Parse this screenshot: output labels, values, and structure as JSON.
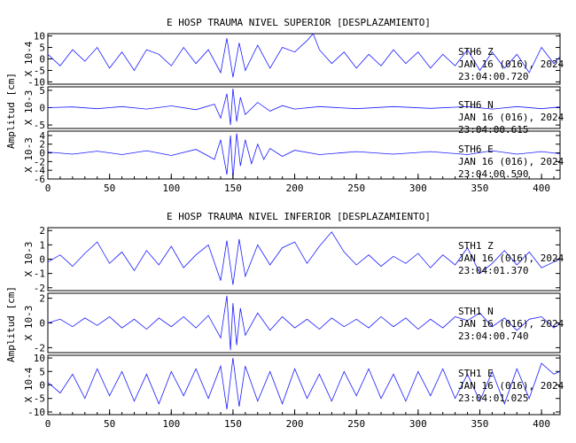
{
  "chart_data": [
    {
      "type": "line",
      "title": "E HOSP TRAUMA NIVEL SUPERIOR [DESPLAZAMIENTO]",
      "ylabel": "Amplitud [cm]",
      "xlim": [
        0,
        415
      ],
      "x_ticks": [
        0,
        50,
        100,
        150,
        200,
        250,
        300,
        350,
        400
      ],
      "series": [
        {
          "name": "STH6 Z",
          "scale_label": "X 10-4",
          "y_ticks": [
            "10",
            "5",
            "0",
            "-5",
            "-10"
          ],
          "ylim": [
            -11,
            11
          ],
          "annotation": [
            "STH6 Z",
            "JAN 16 (016), 2024",
            "23:04:00.720"
          ],
          "color": "#1a1aff",
          "points": [
            [
              0,
              2
            ],
            [
              10,
              -3
            ],
            [
              20,
              4
            ],
            [
              30,
              -1
            ],
            [
              40,
              5
            ],
            [
              50,
              -4
            ],
            [
              60,
              3
            ],
            [
              70,
              -5
            ],
            [
              80,
              4
            ],
            [
              90,
              2
            ],
            [
              100,
              -3
            ],
            [
              110,
              5
            ],
            [
              120,
              -2
            ],
            [
              130,
              4
            ],
            [
              140,
              -6
            ],
            [
              145,
              9
            ],
            [
              150,
              -8
            ],
            [
              155,
              7
            ],
            [
              160,
              -5
            ],
            [
              170,
              6
            ],
            [
              180,
              -4
            ],
            [
              190,
              5
            ],
            [
              200,
              3
            ],
            [
              210,
              8
            ],
            [
              215,
              11
            ],
            [
              220,
              4
            ],
            [
              230,
              -2
            ],
            [
              240,
              3
            ],
            [
              250,
              -4
            ],
            [
              260,
              2
            ],
            [
              270,
              -3
            ],
            [
              280,
              4
            ],
            [
              290,
              -2
            ],
            [
              300,
              3
            ],
            [
              310,
              -4
            ],
            [
              320,
              2
            ],
            [
              330,
              -3
            ],
            [
              340,
              4
            ],
            [
              350,
              -5
            ],
            [
              360,
              3
            ],
            [
              370,
              -4
            ],
            [
              380,
              2
            ],
            [
              390,
              -6
            ],
            [
              400,
              5
            ],
            [
              410,
              -2
            ],
            [
              415,
              1
            ]
          ]
        },
        {
          "name": "STH6 N",
          "scale_label": "X 10-3",
          "y_ticks": [
            "5",
            "0",
            "-5"
          ],
          "ylim": [
            -6,
            6
          ],
          "annotation": [
            "STH6 N",
            "JAN 16 (016), 2024",
            "23:04:00.615"
          ],
          "color": "#1a1aff",
          "points": [
            [
              0,
              0
            ],
            [
              20,
              0.2
            ],
            [
              40,
              -0.3
            ],
            [
              60,
              0.3
            ],
            [
              80,
              -0.4
            ],
            [
              100,
              0.5
            ],
            [
              120,
              -0.6
            ],
            [
              135,
              1
            ],
            [
              140,
              -3
            ],
            [
              145,
              4
            ],
            [
              148,
              -5
            ],
            [
              150,
              5.5
            ],
            [
              153,
              -4
            ],
            [
              156,
              3
            ],
            [
              160,
              -2
            ],
            [
              170,
              1.5
            ],
            [
              180,
              -1
            ],
            [
              190,
              0.6
            ],
            [
              200,
              -0.4
            ],
            [
              220,
              0.3
            ],
            [
              250,
              -0.3
            ],
            [
              280,
              0.3
            ],
            [
              310,
              -0.2
            ],
            [
              340,
              0.3
            ],
            [
              360,
              -0.4
            ],
            [
              380,
              0.3
            ],
            [
              400,
              -0.3
            ],
            [
              415,
              0.2
            ]
          ]
        },
        {
          "name": "STH6 E",
          "scale_label": "X 10-3",
          "y_ticks": [
            "4",
            "2",
            "0",
            "-2",
            "-4",
            "-6"
          ],
          "ylim": [
            -6,
            5
          ],
          "annotation": [
            "STH6 E",
            "JAN 16 (016), 2024",
            "23:04:00.590"
          ],
          "color": "#1a1aff",
          "points": [
            [
              0,
              0.2
            ],
            [
              20,
              -0.3
            ],
            [
              40,
              0.4
            ],
            [
              60,
              -0.4
            ],
            [
              80,
              0.5
            ],
            [
              100,
              -0.6
            ],
            [
              120,
              0.8
            ],
            [
              135,
              -1.5
            ],
            [
              140,
              3
            ],
            [
              145,
              -5
            ],
            [
              148,
              4
            ],
            [
              150,
              -6
            ],
            [
              153,
              4.5
            ],
            [
              156,
              -3
            ],
            [
              160,
              3
            ],
            [
              165,
              -2.5
            ],
            [
              170,
              2
            ],
            [
              175,
              -1.5
            ],
            [
              180,
              1
            ],
            [
              190,
              -0.8
            ],
            [
              200,
              0.6
            ],
            [
              220,
              -0.4
            ],
            [
              250,
              0.3
            ],
            [
              280,
              -0.3
            ],
            [
              310,
              0.3
            ],
            [
              340,
              -0.4
            ],
            [
              360,
              0.5
            ],
            [
              380,
              -0.3
            ],
            [
              400,
              0.3
            ],
            [
              415,
              -0.2
            ]
          ]
        }
      ]
    },
    {
      "type": "line",
      "title": "E HOSP TRAUMA NIVEL INFERIOR [DESPLAZAMIENTO]",
      "ylabel": "Amplitud [cm]",
      "xlim": [
        0,
        415
      ],
      "x_ticks": [
        0,
        50,
        100,
        150,
        200,
        250,
        300,
        350,
        400
      ],
      "series": [
        {
          "name": "STH1 Z",
          "scale_label": "X 10-3",
          "y_ticks": [
            "2",
            "1",
            "0",
            "-1",
            "-2"
          ],
          "ylim": [
            -2.2,
            2.2
          ],
          "annotation": [
            "STH1 Z",
            "JAN 16 (016), 2024",
            "23:04:01.370"
          ],
          "color": "#1a1aff",
          "points": [
            [
              0,
              -0.2
            ],
            [
              10,
              0.3
            ],
            [
              20,
              -0.5
            ],
            [
              30,
              0.4
            ],
            [
              40,
              1.2
            ],
            [
              50,
              -0.3
            ],
            [
              60,
              0.5
            ],
            [
              70,
              -0.8
            ],
            [
              80,
              0.6
            ],
            [
              90,
              -0.4
            ],
            [
              100,
              0.9
            ],
            [
              110,
              -0.6
            ],
            [
              120,
              0.3
            ],
            [
              130,
              1
            ],
            [
              140,
              -1.5
            ],
            [
              145,
              1.3
            ],
            [
              150,
              -1.8
            ],
            [
              155,
              1.4
            ],
            [
              160,
              -1.2
            ],
            [
              170,
              1.0
            ],
            [
              180,
              -0.4
            ],
            [
              190,
              0.8
            ],
            [
              200,
              1.2
            ],
            [
              210,
              -0.3
            ],
            [
              220,
              0.9
            ],
            [
              230,
              1.9
            ],
            [
              240,
              0.5
            ],
            [
              250,
              -0.4
            ],
            [
              260,
              0.3
            ],
            [
              270,
              -0.5
            ],
            [
              280,
              0.2
            ],
            [
              290,
              -0.3
            ],
            [
              300,
              0.4
            ],
            [
              310,
              -0.6
            ],
            [
              320,
              0.3
            ],
            [
              330,
              -0.4
            ],
            [
              340,
              0.8
            ],
            [
              350,
              -1.0
            ],
            [
              360,
              -0.3
            ],
            [
              370,
              0.6
            ],
            [
              380,
              -0.4
            ],
            [
              390,
              0.5
            ],
            [
              400,
              -0.6
            ],
            [
              410,
              -0.2
            ],
            [
              415,
              0
            ]
          ]
        },
        {
          "name": "STH1 N",
          "scale_label": "X 10-3",
          "y_ticks": [
            "2",
            "0",
            "-2"
          ],
          "ylim": [
            -2.4,
            2.4
          ],
          "annotation": [
            "STH1 N",
            "JAN 16 (016), 2024",
            "23:04:00.740"
          ],
          "color": "#1a1aff",
          "points": [
            [
              0,
              0
            ],
            [
              10,
              0.3
            ],
            [
              20,
              -0.3
            ],
            [
              30,
              0.4
            ],
            [
              40,
              -0.2
            ],
            [
              50,
              0.5
            ],
            [
              60,
              -0.4
            ],
            [
              70,
              0.3
            ],
            [
              80,
              -0.5
            ],
            [
              90,
              0.4
            ],
            [
              100,
              -0.3
            ],
            [
              110,
              0.5
            ],
            [
              120,
              -0.4
            ],
            [
              130,
              0.6
            ],
            [
              140,
              -1.2
            ],
            [
              145,
              2.2
            ],
            [
              148,
              -2.2
            ],
            [
              150,
              1.6
            ],
            [
              153,
              -1.8
            ],
            [
              156,
              1.2
            ],
            [
              160,
              -1.0
            ],
            [
              170,
              0.8
            ],
            [
              180,
              -0.6
            ],
            [
              190,
              0.5
            ],
            [
              200,
              -0.4
            ],
            [
              210,
              0.3
            ],
            [
              220,
              -0.5
            ],
            [
              230,
              0.4
            ],
            [
              240,
              -0.3
            ],
            [
              250,
              0.3
            ],
            [
              260,
              -0.4
            ],
            [
              270,
              0.5
            ],
            [
              280,
              -0.3
            ],
            [
              290,
              0.4
            ],
            [
              300,
              -0.5
            ],
            [
              310,
              0.3
            ],
            [
              320,
              -0.4
            ],
            [
              330,
              0.5
            ],
            [
              340,
              0.2
            ],
            [
              350,
              0.8
            ],
            [
              360,
              -0.3
            ],
            [
              370,
              0.4
            ],
            [
              380,
              -0.6
            ],
            [
              390,
              0.3
            ],
            [
              400,
              0.5
            ],
            [
              410,
              -0.4
            ],
            [
              415,
              0
            ]
          ]
        },
        {
          "name": "STH1 E",
          "scale_label": "X 10-4",
          "y_ticks": [
            "10",
            "5",
            "0",
            "-5",
            "-10"
          ],
          "ylim": [
            -11,
            11
          ],
          "annotation": [
            "STH1 E",
            "JAN 16 (016), 2024",
            "23:04:01.025"
          ],
          "color": "#1a1aff",
          "points": [
            [
              0,
              1
            ],
            [
              10,
              -3
            ],
            [
              20,
              4
            ],
            [
              30,
              -5
            ],
            [
              40,
              6
            ],
            [
              50,
              -4
            ],
            [
              60,
              5
            ],
            [
              70,
              -6
            ],
            [
              80,
              4
            ],
            [
              90,
              -7
            ],
            [
              100,
              5
            ],
            [
              110,
              -4
            ],
            [
              120,
              6
            ],
            [
              130,
              -5
            ],
            [
              140,
              7
            ],
            [
              145,
              -9
            ],
            [
              150,
              10
            ],
            [
              155,
              -8
            ],
            [
              160,
              7
            ],
            [
              170,
              -6
            ],
            [
              180,
              5
            ],
            [
              190,
              -7
            ],
            [
              200,
              6
            ],
            [
              210,
              -5
            ],
            [
              220,
              4
            ],
            [
              230,
              -6
            ],
            [
              240,
              5
            ],
            [
              250,
              -4
            ],
            [
              260,
              6
            ],
            [
              270,
              -5
            ],
            [
              280,
              4
            ],
            [
              290,
              -6
            ],
            [
              300,
              5
            ],
            [
              310,
              -4
            ],
            [
              320,
              6
            ],
            [
              330,
              -5
            ],
            [
              340,
              4
            ],
            [
              350,
              -6
            ],
            [
              360,
              5
            ],
            [
              370,
              -7
            ],
            [
              380,
              6
            ],
            [
              390,
              -5
            ],
            [
              400,
              8
            ],
            [
              410,
              4
            ],
            [
              415,
              5
            ]
          ]
        }
      ]
    }
  ]
}
